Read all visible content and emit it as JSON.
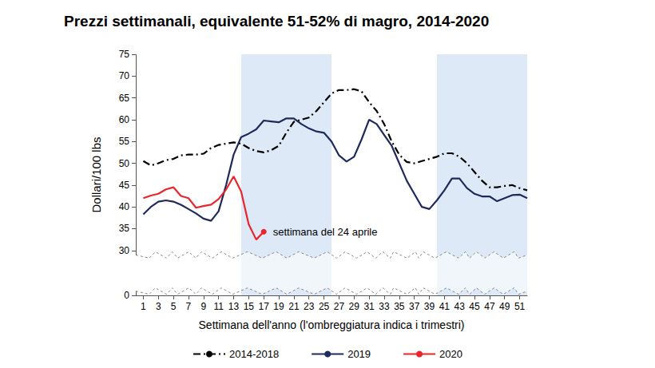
{
  "chart_data": {
    "type": "line",
    "title": "Prezzi settimanali, equivalente 51-52% di magro, 2014-2020",
    "x_label": "Settimana dell'anno (l'ombreggiatura indica i trimestri)",
    "y_label": "Dollari/100 lbs",
    "x": [
      1,
      2,
      3,
      4,
      5,
      6,
      7,
      8,
      9,
      10,
      11,
      12,
      13,
      14,
      15,
      16,
      17,
      18,
      19,
      20,
      21,
      22,
      23,
      24,
      25,
      26,
      27,
      28,
      29,
      30,
      31,
      32,
      33,
      34,
      35,
      36,
      37,
      38,
      39,
      40,
      41,
      42,
      43,
      44,
      45,
      46,
      47,
      48,
      49,
      50,
      51,
      52
    ],
    "series": [
      {
        "name": "2014-2018",
        "color": "#000000",
        "line_style": "dashdot",
        "values": [
          50.5,
          49.5,
          50,
          50.7,
          51,
          51.8,
          52,
          52,
          52.2,
          53.5,
          54.2,
          54.5,
          54.8,
          54.5,
          53.5,
          52.8,
          52.5,
          53,
          54,
          57,
          59.5,
          60,
          60.5,
          62,
          64,
          66,
          66.8,
          66.8,
          67,
          66.5,
          64,
          62,
          59,
          55,
          52,
          50.3,
          50,
          50.5,
          51,
          51.5,
          52.3,
          52.3,
          51.5,
          50,
          48,
          46,
          44.5,
          44.5,
          44.8,
          45,
          44.3,
          43.8
        ]
      },
      {
        "name": "2019",
        "color": "#1f2a5c",
        "line_style": "solid",
        "values": [
          38.3,
          40,
          41.2,
          41.5,
          41.2,
          40.5,
          39.5,
          38.5,
          37.3,
          36.8,
          39,
          45,
          52,
          56,
          56.8,
          57.8,
          59.8,
          59.6,
          59.4,
          60.3,
          60.3,
          59,
          58,
          57.3,
          57,
          55,
          51.8,
          50.4,
          51.5,
          55.5,
          60,
          59,
          56.5,
          54,
          50,
          46,
          43,
          40,
          39.5,
          41.5,
          43.8,
          46.5,
          46.5,
          44.3,
          43,
          42.4,
          42.4,
          41.3,
          42,
          42.7,
          42.8,
          42
        ]
      },
      {
        "name": "2020",
        "color": "#e8262c",
        "line_style": "solid",
        "values": [
          42,
          42.6,
          43,
          44,
          44.5,
          42.5,
          42,
          39.8,
          40.2,
          40.5,
          41.8,
          44,
          47,
          43.5,
          36,
          32.5,
          34.3,
          null,
          null,
          null,
          null,
          null,
          null,
          null,
          null,
          null,
          null,
          null,
          null,
          null,
          null,
          null,
          null,
          null,
          null,
          null,
          null,
          null,
          null,
          null,
          null,
          null,
          null,
          null,
          null,
          null,
          null,
          null,
          null,
          null,
          null,
          null
        ]
      }
    ],
    "xlim": [
      0,
      52
    ],
    "xticks": [
      1,
      3,
      5,
      7,
      9,
      11,
      13,
      15,
      17,
      19,
      21,
      23,
      25,
      27,
      29,
      31,
      33,
      35,
      37,
      39,
      41,
      43,
      45,
      47,
      49,
      51
    ],
    "ylim": [
      0,
      75
    ],
    "yticks": [
      0,
      30,
      35,
      40,
      45,
      50,
      55,
      60,
      65,
      70,
      75
    ],
    "grid": false,
    "legend": "bottom",
    "shaded_x": [
      [
        14,
        26
      ],
      [
        40,
        52
      ]
    ],
    "annotations": [
      {
        "text": "settimana del 24 aprile",
        "x": 17,
        "y": 34.3,
        "color": "#e8262c"
      }
    ]
  }
}
